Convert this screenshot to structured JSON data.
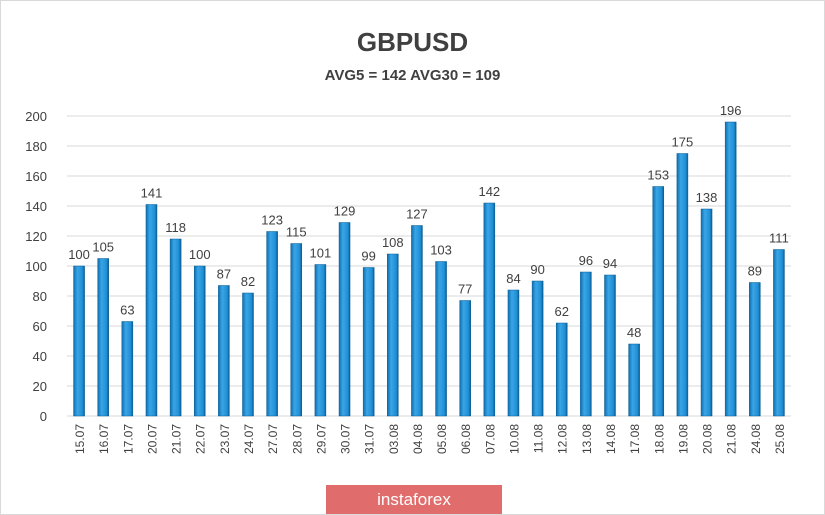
{
  "chart_data": {
    "type": "bar",
    "title": "GBPUSD",
    "subtitle": "AVG5 = 142 AVG30 = 109",
    "xlabel": "",
    "ylabel": "",
    "ylim": [
      0,
      200
    ],
    "yticks": [
      0,
      20,
      40,
      60,
      80,
      100,
      120,
      140,
      160,
      180,
      200
    ],
    "grid": true,
    "categories": [
      "15.07",
      "16.07",
      "17.07",
      "20.07",
      "21.07",
      "22.07",
      "23.07",
      "24.07",
      "27.07",
      "28.07",
      "29.07",
      "30.07",
      "31.07",
      "03.08",
      "04.08",
      "05.08",
      "06.08",
      "07.08",
      "10.08",
      "11.08",
      "12.08",
      "13.08",
      "14.08",
      "17.08",
      "18.08",
      "19.08",
      "20.08",
      "21.08",
      "24.08",
      "25.08"
    ],
    "values": [
      100,
      105,
      63,
      141,
      118,
      100,
      87,
      82,
      123,
      115,
      101,
      129,
      99,
      108,
      127,
      103,
      77,
      142,
      84,
      90,
      62,
      96,
      94,
      48,
      153,
      175,
      138,
      196,
      89,
      111
    ],
    "bar_color": "#1f8fd6"
  },
  "logo": {
    "text": "instaforex"
  }
}
